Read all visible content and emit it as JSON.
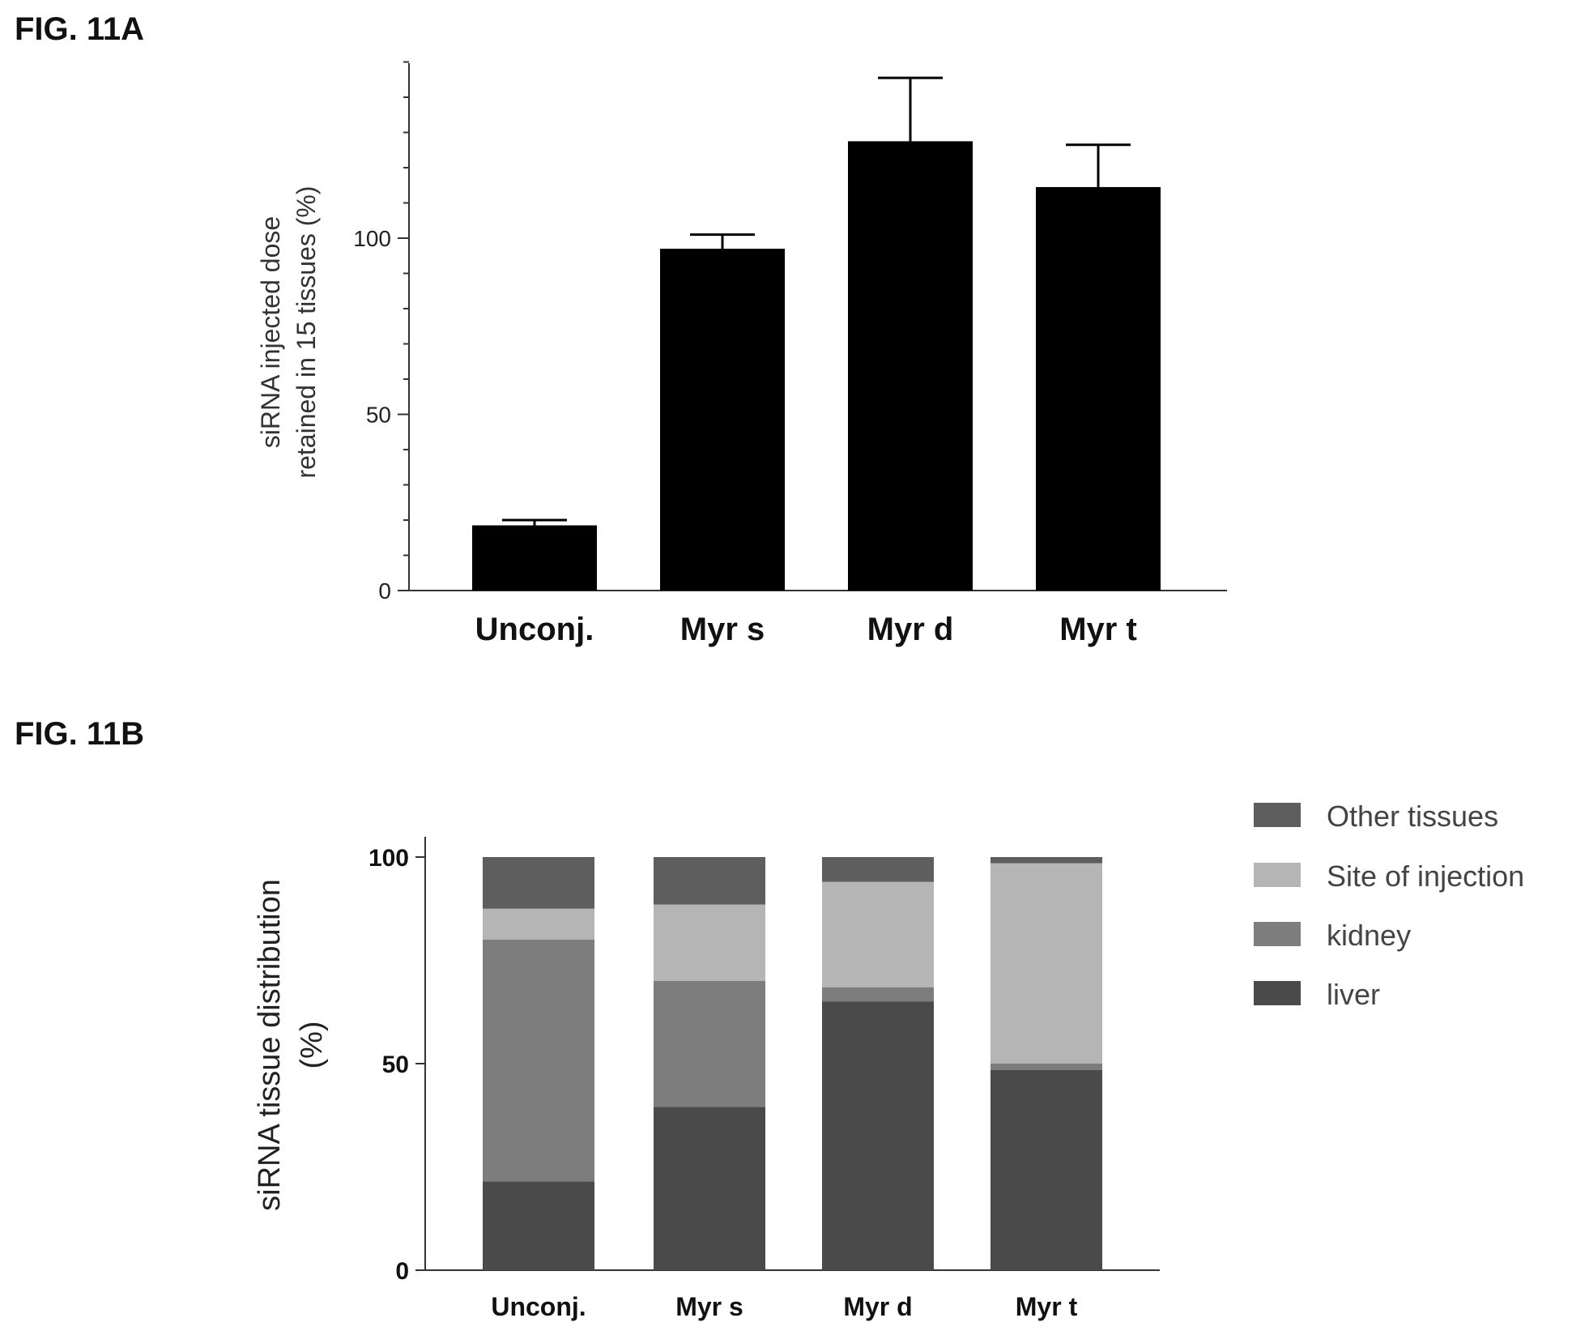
{
  "figures": {
    "a_label": "FIG. 11A",
    "b_label": "FIG. 11B"
  },
  "chart_data": [
    {
      "panel": "FIG. 11A",
      "type": "bar",
      "categories": [
        "Unconj.",
        "Myr s",
        "Myr d",
        "Myr t"
      ],
      "values": [
        18.5,
        97,
        127.5,
        114.5
      ],
      "errors": [
        1.5,
        4,
        18,
        12
      ],
      "ylabel_lines": [
        "siRNA injected dose",
        "retained in 15 tissues (%)"
      ],
      "yticks": [
        0,
        50,
        100
      ],
      "ylim": [
        0,
        150
      ],
      "bar_color": "#000000"
    },
    {
      "panel": "FIG. 11B",
      "type": "bar",
      "stacked": true,
      "categories": [
        "Unconj.",
        "Myr s",
        "Myr d",
        "Myr t"
      ],
      "series": [
        {
          "name": "liver",
          "values": [
            21.5,
            39.5,
            65,
            48.5
          ],
          "color": "#4a4a4a"
        },
        {
          "name": "kidney",
          "values": [
            58.5,
            30.5,
            3.5,
            1.5
          ],
          "color": "#7d7d7d"
        },
        {
          "name": "Site of injection",
          "values": [
            7.5,
            18.5,
            25.5,
            48.5
          ],
          "color": "#b5b5b5"
        },
        {
          "name": "Other tissues",
          "values": [
            12.5,
            11.5,
            6,
            1.5
          ],
          "color": "#5e5e5e"
        }
      ],
      "legend_order": [
        "Other tissues",
        "Site of injection",
        "kidney",
        "liver"
      ],
      "ylabel_lines": [
        "siRNA tissue distribution",
        "(%)"
      ],
      "yticks": [
        0,
        50,
        100
      ],
      "ylim": [
        0,
        105
      ],
      "legend_position": "top-right"
    }
  ]
}
